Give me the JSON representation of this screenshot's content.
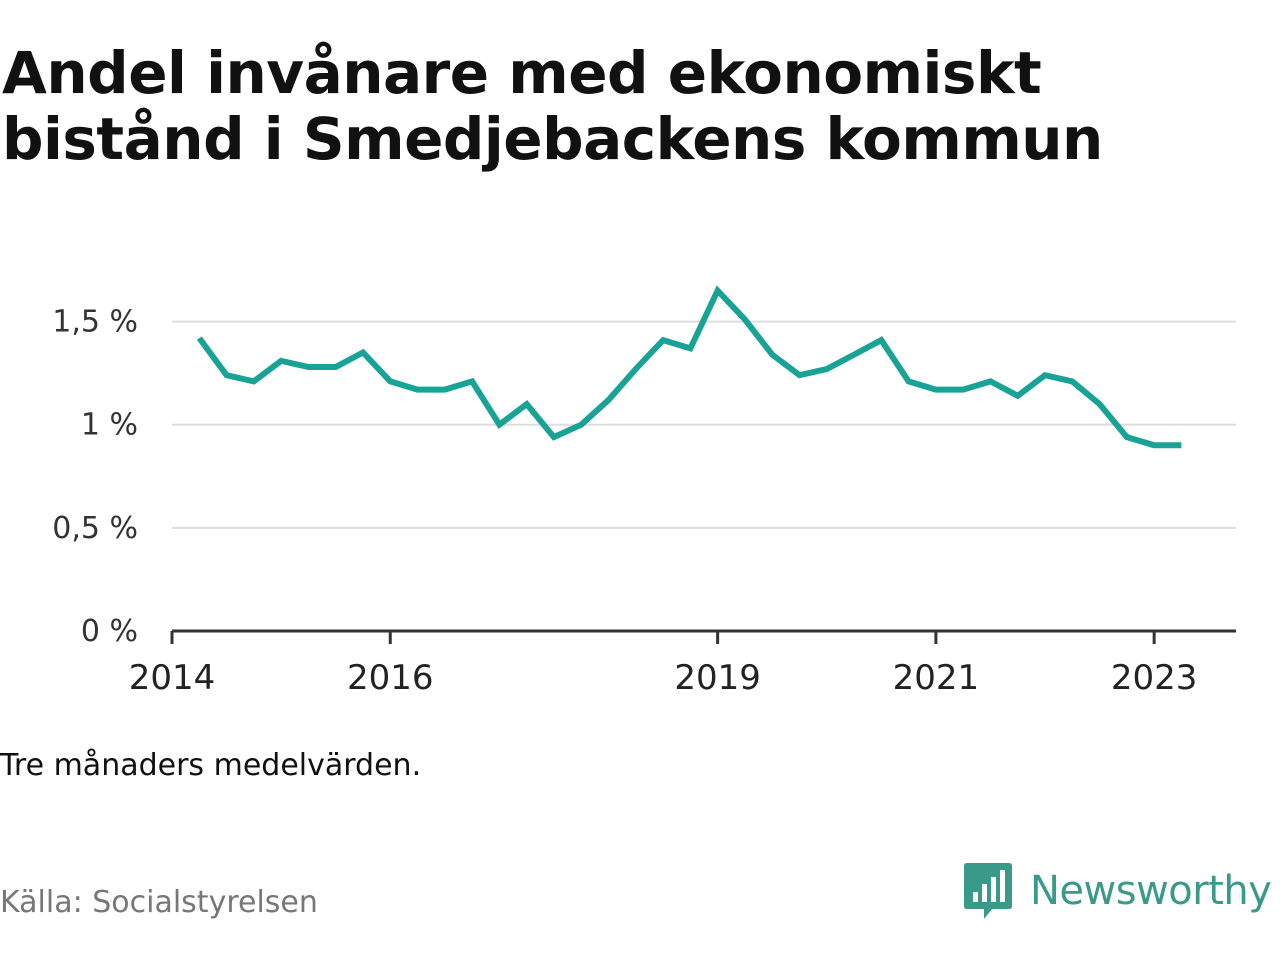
{
  "title": "Andel invånare med ekonomiskt bistånd i Smedjebackens kommun",
  "note": "Tre månaders medelvärden.",
  "source": "Källa: Socialstyrelsen",
  "brand": {
    "name": "Newsworthy",
    "icon": "newsworthy-logo-icon",
    "color": "#3a9a8a"
  },
  "chart_data": {
    "type": "line",
    "title": "Andel invånare med ekonomiskt bistånd i Smedjebackens kommun",
    "xlabel": "",
    "ylabel": "",
    "ylim": [
      0,
      1.75
    ],
    "xlim": [
      "2014-01",
      "2023-10"
    ],
    "grid": true,
    "legend": "none",
    "line_color": "#19a396",
    "y_ticks": [
      {
        "value": 0,
        "label": "0 %"
      },
      {
        "value": 0.5,
        "label": "0,5 %"
      },
      {
        "value": 1,
        "label": "1 %"
      },
      {
        "value": 1.5,
        "label": "1,5 %"
      }
    ],
    "x_ticks": [
      {
        "date": "2014-01",
        "label": "2014"
      },
      {
        "date": "2016-01",
        "label": "2016"
      },
      {
        "date": "2019-01",
        "label": "2019"
      },
      {
        "date": "2021-01",
        "label": "2021"
      },
      {
        "date": "2023-01",
        "label": "2023"
      }
    ],
    "series": [
      {
        "x": [
          "2014-04",
          "2014-07",
          "2014-10",
          "2015-01",
          "2015-04",
          "2015-07",
          "2015-10",
          "2016-01",
          "2016-04",
          "2016-07",
          "2016-10",
          "2017-01",
          "2017-04",
          "2017-07",
          "2017-10",
          "2018-01",
          "2018-04",
          "2018-07",
          "2018-10",
          "2019-01",
          "2019-04",
          "2019-07",
          "2019-10",
          "2020-01",
          "2020-04",
          "2020-07",
          "2020-10",
          "2021-01",
          "2021-04",
          "2021-07",
          "2021-10",
          "2022-01",
          "2022-04",
          "2022-07",
          "2022-10",
          "2023-01",
          "2023-04"
        ],
        "values": [
          1.42,
          1.24,
          1.21,
          1.31,
          1.28,
          1.28,
          1.35,
          1.21,
          1.17,
          1.17,
          1.21,
          1.0,
          1.1,
          0.94,
          1.0,
          1.12,
          1.27,
          1.41,
          1.37,
          1.65,
          1.51,
          1.34,
          1.24,
          1.27,
          1.34,
          1.41,
          1.21,
          1.17,
          1.17,
          1.21,
          1.14,
          1.24,
          1.21,
          1.1,
          0.94,
          0.9,
          0.9
        ]
      }
    ]
  }
}
